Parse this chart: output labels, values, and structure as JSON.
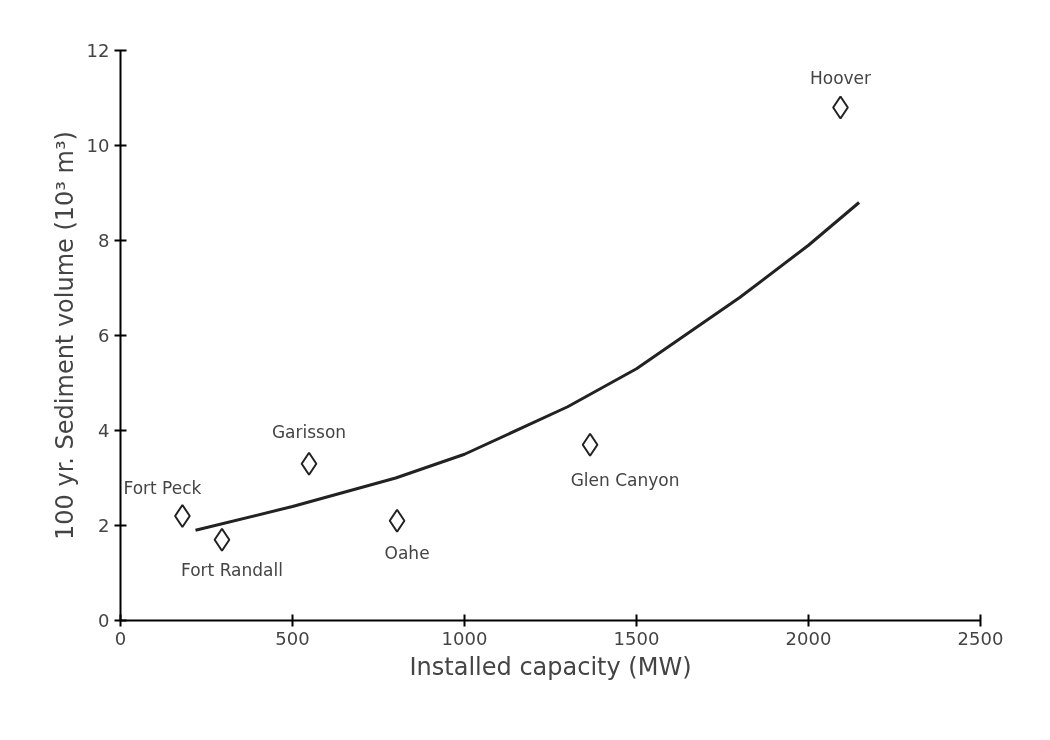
{
  "chart_data": {
    "type": "scatter",
    "xlabel": "Installed capacity (MW)",
    "ylabel": "100 yr. Sediment volume (10³ m³)",
    "xlim": [
      0,
      2500
    ],
    "ylim": [
      0,
      12
    ],
    "xticks": [
      0,
      500,
      1000,
      1500,
      2000,
      2500
    ],
    "yticks": [
      0,
      2,
      4,
      6,
      8,
      10,
      12
    ],
    "grid": false,
    "series": [
      {
        "color": "#222222",
        "marker": "diamond",
        "x": [
          180,
          295,
          548,
          804,
          1365,
          2093
        ],
        "values": [
          2.2,
          1.7,
          3.3,
          2.1,
          3.7,
          10.8
        ]
      },
      {
        "type": "line",
        "color": "#222222",
        "line_style": "solid",
        "x": [
          218,
          500,
          800,
          1000,
          1300,
          1500,
          1800,
          2000,
          2147
        ],
        "values": [
          1.9,
          2.4,
          3.0,
          3.5,
          4.5,
          5.3,
          6.8,
          7.9,
          8.8
        ]
      }
    ],
    "annotations": [
      {
        "text": "Fort Peck",
        "x": 180,
        "y": 2.2
      },
      {
        "text": "Fort Randall",
        "x": 295,
        "y": 1.7
      },
      {
        "text": "Garisson",
        "x": 548,
        "y": 3.3
      },
      {
        "text": "Oahe",
        "x": 804,
        "y": 2.1
      },
      {
        "text": "Glen Canyon",
        "x": 1365,
        "y": 3.7
      },
      {
        "text": "Hoover",
        "x": 2093,
        "y": 10.8
      }
    ]
  }
}
